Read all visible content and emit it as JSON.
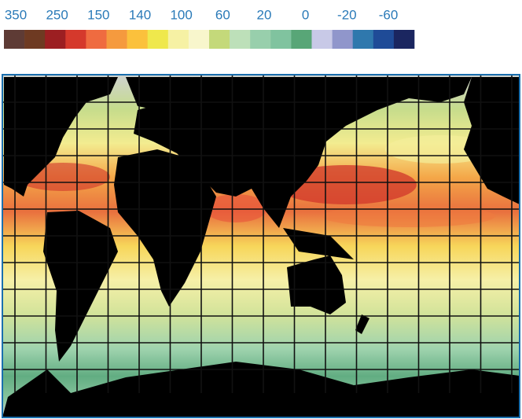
{
  "legend": {
    "labels": [
      350,
      250,
      150,
      140,
      100,
      60,
      20,
      0,
      -20,
      -60
    ],
    "colors": [
      "#5e3b35",
      "#6e3a22",
      "#9c1f22",
      "#d5392c",
      "#ef6b40",
      "#f59a3e",
      "#fbc13c",
      "#efe84c",
      "#f6f1a4",
      "#f8f6cc",
      "#c4d97a",
      "#bde0b9",
      "#98cfac",
      "#80c39f",
      "#58a677",
      "#c8c9e7",
      "#9096cb",
      "#2f78ad",
      "#1f4b97",
      "#1b2660"
    ]
  }
}
